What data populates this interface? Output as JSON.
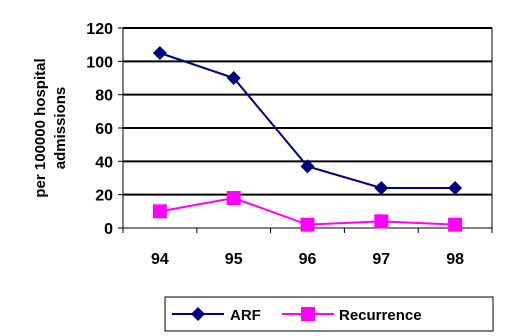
{
  "chart_data": {
    "type": "line",
    "x": [
      "94",
      "95",
      "96",
      "97",
      "98"
    ],
    "ylabel": [
      "per 100000 hospital",
      "admissions"
    ],
    "ylim": [
      0,
      120
    ],
    "yticks": [
      "0",
      "20",
      "40",
      "60",
      "80",
      "100",
      "120"
    ],
    "grid": true,
    "legend_position": "bottom",
    "series": [
      {
        "name": "ARF",
        "values": [
          105,
          90,
          37,
          24,
          24
        ],
        "color": "#000080",
        "marker": "diamond"
      },
      {
        "name": "Recurrence",
        "values": [
          10,
          18,
          2,
          4,
          2
        ],
        "color": "#ff00ff",
        "marker": "square"
      }
    ]
  }
}
